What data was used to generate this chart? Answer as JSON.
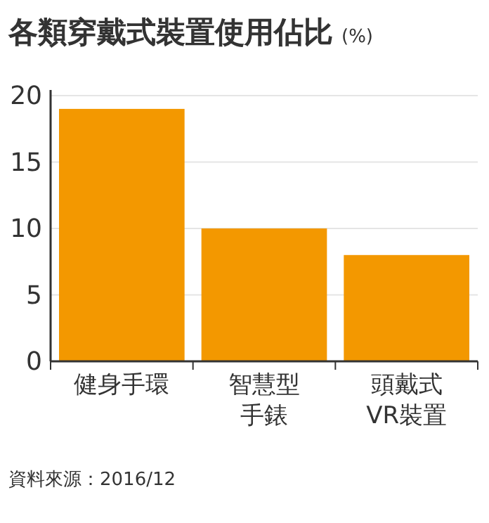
{
  "chart_data": {
    "type": "bar",
    "title": "各類穿戴式裝置使用佔比",
    "ylabel": "(%)",
    "categories": [
      "健身手環",
      "智慧型手錶",
      "頭戴式VR裝置"
    ],
    "values": [
      19,
      10,
      8
    ],
    "color": "#f39800",
    "ylim": [
      0,
      20
    ],
    "yticks": [
      0,
      5,
      10,
      15,
      20
    ],
    "grid": "y",
    "legend": false,
    "annotations": [
      "資料來源：2016/12"
    ]
  }
}
